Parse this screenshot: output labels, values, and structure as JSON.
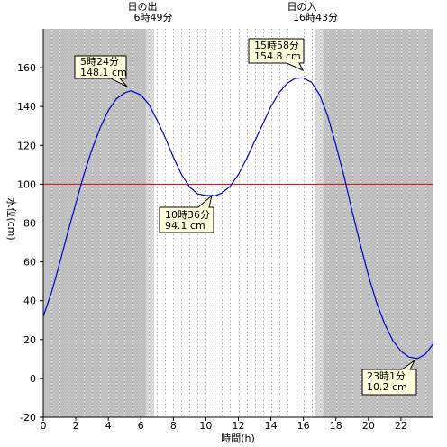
{
  "chart_data": {
    "type": "line",
    "xlabel": "時間(h)",
    "ylabel": "水位(cm)",
    "xlim": [
      0,
      24
    ],
    "ylim": [
      -20,
      180
    ],
    "x_ticks": [
      0,
      2,
      4,
      6,
      8,
      10,
      12,
      14,
      16,
      18,
      20,
      22
    ],
    "y_ticks": [
      -20,
      0,
      20,
      40,
      60,
      80,
      100,
      120,
      140,
      160
    ],
    "grid": "vertical dotted every 0.5 h",
    "reference_line": {
      "value": 100,
      "color": "#dd0000"
    },
    "sunrise": {
      "label": "日の出",
      "time_label": "6時49分",
      "hour": 6.8167
    },
    "sunset": {
      "label": "日の入",
      "time_label": "16時43分",
      "hour": 16.7167
    },
    "series": [
      {
        "color": "#0000cc",
        "x": [
          0,
          0.5,
          1,
          1.5,
          2,
          2.5,
          3,
          3.5,
          4,
          4.5,
          5,
          5.4,
          6,
          6.5,
          7,
          7.5,
          8,
          8.5,
          9,
          9.5,
          10,
          10.6,
          11,
          11.5,
          12,
          12.5,
          13,
          13.5,
          14,
          14.5,
          15,
          15.5,
          15.97,
          16.5,
          17,
          17.5,
          18,
          18.5,
          19,
          19.5,
          20,
          20.5,
          21,
          21.5,
          22,
          22.5,
          23.02,
          23.5,
          24
        ],
        "values": [
          32,
          44,
          59,
          75,
          90,
          105,
          118,
          129,
          138,
          144,
          147,
          148.1,
          146,
          141,
          133,
          124,
          114,
          105,
          98.5,
          95,
          94.2,
          94.1,
          95.5,
          99,
          105,
          113,
          122,
          131,
          140,
          147,
          152,
          154.5,
          154.8,
          152.5,
          146,
          135,
          120,
          104,
          86,
          69,
          53,
          39,
          28,
          19.5,
          14,
          11,
          10.2,
          12.5,
          18
        ]
      }
    ],
    "annotations": [
      {
        "time": "5時24分",
        "value": "148.1 cm",
        "x": 5.4,
        "y": 148.1
      },
      {
        "time": "10時36分",
        "value": "94.1 cm",
        "x": 10.6,
        "y": 94.1
      },
      {
        "time": "15時58分",
        "value": "154.8 cm",
        "x": 15.97,
        "y": 154.8
      },
      {
        "time": "23時1分",
        "value": "10.2 cm",
        "x": 23.02,
        "y": 10.2
      }
    ],
    "colors": {
      "night": "#c0c0c0",
      "twilight": "#d8d8d8",
      "day": "#ffffff",
      "annotation_fill": "#ffffdd",
      "axis": "#000000"
    }
  }
}
